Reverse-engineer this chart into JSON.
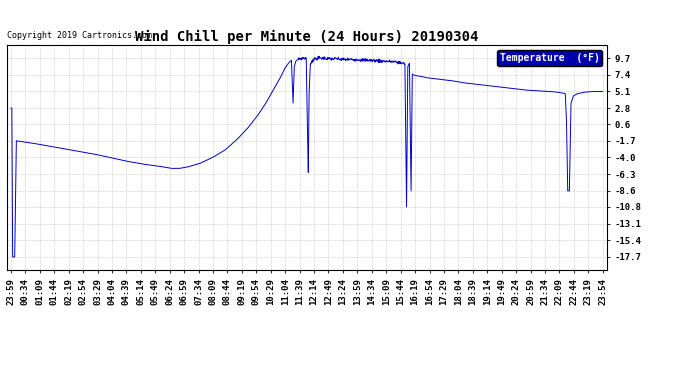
{
  "title": "Wind Chill per Minute (24 Hours) 20190304",
  "copyright": "Copyright 2019 Cartronics.com",
  "legend_label": "Temperature  (°F)",
  "yticks": [
    9.7,
    7.4,
    5.1,
    2.8,
    0.6,
    -1.7,
    -4.0,
    -6.3,
    -8.6,
    -10.8,
    -13.1,
    -15.4,
    -17.7
  ],
  "ylim": [
    -19.5,
    11.5
  ],
  "line_color": "#0000cc",
  "bg_color": "#ffffff",
  "grid_color": "#bbbbbb",
  "title_fontsize": 10,
  "axis_fontsize": 6.5,
  "legend_bg": "#0000aa",
  "legend_fg": "#ffffff",
  "xtick_labels": [
    "23:59",
    "00:34",
    "01:09",
    "01:44",
    "02:19",
    "02:54",
    "03:29",
    "04:04",
    "04:39",
    "05:14",
    "05:49",
    "06:24",
    "06:59",
    "07:34",
    "08:09",
    "08:44",
    "09:19",
    "09:54",
    "10:29",
    "11:04",
    "11:39",
    "12:14",
    "12:49",
    "13:24",
    "13:59",
    "14:34",
    "15:09",
    "15:44",
    "16:19",
    "16:54",
    "17:29",
    "18:04",
    "18:39",
    "19:14",
    "19:49",
    "20:24",
    "20:59",
    "21:34",
    "22:09",
    "22:44",
    "23:19",
    "23:54"
  ]
}
